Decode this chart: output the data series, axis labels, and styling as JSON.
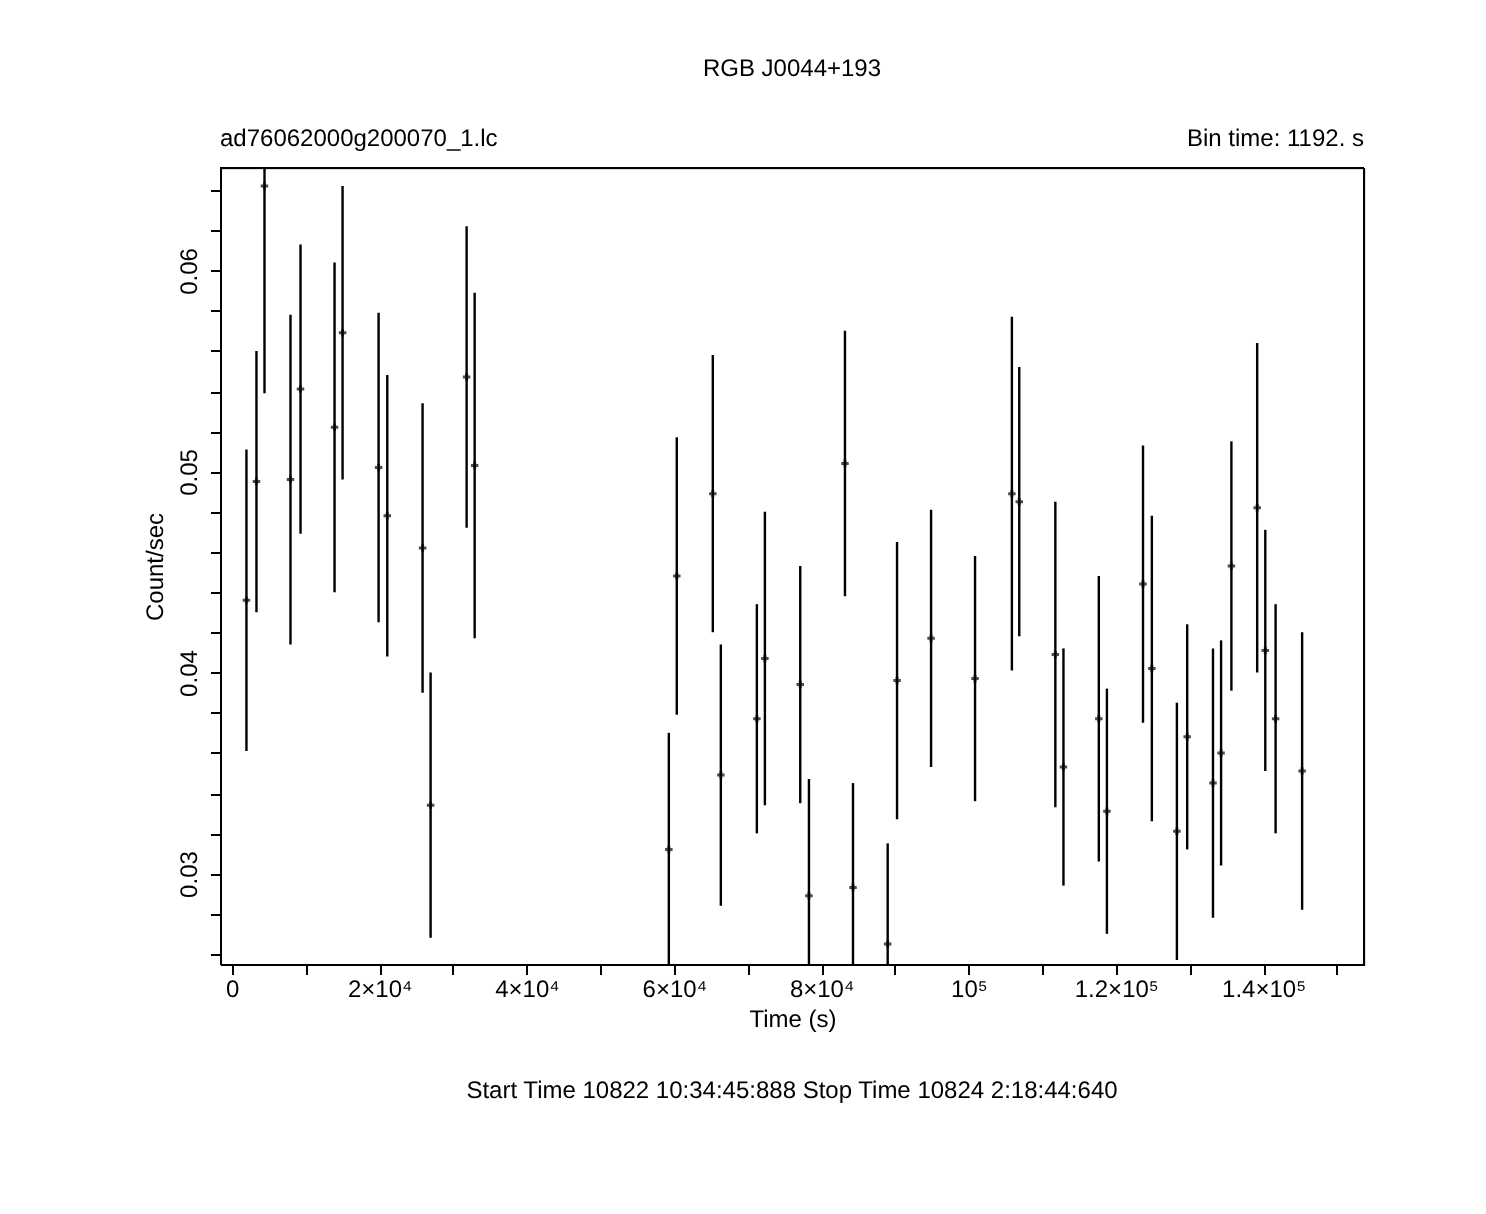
{
  "chart_data": {
    "type": "scatter",
    "title": "RGB J0044+193",
    "xlabel": "Time (s)",
    "ylabel": "Count/sec",
    "annotations": [
      "ad76062000g200070_1.lc",
      "Bin time:     1192.      s",
      "Start Time 10822  10:34:45:888     Stop Time 10824   2:18:44:640"
    ],
    "marker": "cross",
    "color": "#000000",
    "x": [
      1990,
      3350,
      4440,
      7970,
      9330,
      13950,
      15040,
      19930,
      21110,
      25900,
      26990,
      31880,
      32970,
      59330,
      60410,
      65300,
      66390,
      71280,
      72370,
      77170,
      78350,
      83240,
      84330,
      89040,
      90310,
      94930,
      100900,
      105900,
      106900,
      111800,
      112900,
      117700,
      118800,
      123700,
      124900,
      128300,
      129700,
      133200,
      134300,
      135700,
      139200,
      140300,
      141700,
      145300
    ],
    "values": [
      0.0436,
      0.0495,
      0.0642,
      0.0496,
      0.0541,
      0.0522,
      0.0569,
      0.0502,
      0.0478,
      0.0462,
      0.0334,
      0.0547,
      0.0503,
      0.0312,
      0.0448,
      0.0489,
      0.0349,
      0.0377,
      0.0407,
      0.0394,
      0.0289,
      0.0504,
      0.0293,
      0.0265,
      0.0396,
      0.0417,
      0.0397,
      0.0489,
      0.0485,
      0.0409,
      0.0353,
      0.0377,
      0.0331,
      0.0444,
      0.0402,
      0.0321,
      0.0368,
      0.0345,
      0.036,
      0.0453,
      0.0482,
      0.0411,
      0.0377,
      0.0351
    ],
    "errors": [
      0.0075,
      0.0065,
      0.0103,
      0.0082,
      0.0072,
      0.0082,
      0.0073,
      0.0077,
      0.007,
      0.0072,
      0.0066,
      0.0075,
      0.0086,
      0.0058,
      0.0069,
      0.0069,
      0.0065,
      0.0057,
      0.0073,
      0.0059,
      0.0058,
      0.0066,
      0.0052,
      0.005,
      0.0069,
      0.0064,
      0.0061,
      0.0088,
      0.0067,
      0.0076,
      0.0059,
      0.0071,
      0.0061,
      0.0069,
      0.0076,
      0.0064,
      0.0056,
      0.0067,
      0.0056,
      0.0062,
      0.0082,
      0.006,
      0.0057,
      0.0069
    ],
    "xlim": [
      -1600,
      153700
    ],
    "ylim": [
      0.0255,
      0.0651
    ],
    "xticks": [
      0,
      {
        "value": 10000,
        "label": null
      },
      {
        "value": 20000,
        "label": "2×10⁴"
      },
      {
        "value": 30000,
        "label": null
      },
      {
        "value": 40000,
        "label": "4×10⁴"
      },
      {
        "value": 50000,
        "label": null
      },
      {
        "value": 60000,
        "label": "6×10⁴"
      },
      {
        "value": 70000,
        "label": null
      },
      {
        "value": 80000,
        "label": "8×10⁴"
      },
      {
        "value": 90000,
        "label": null
      },
      {
        "value": 100000,
        "label": "10⁵"
      },
      {
        "value": 110000,
        "label": null
      },
      {
        "value": 120000,
        "label": "1.2×10⁵"
      },
      {
        "value": 130000,
        "label": null
      },
      {
        "value": 140000,
        "label": "1.4×10⁵"
      },
      {
        "value": 150000,
        "label": null
      }
    ],
    "yticks": [
      {
        "value": 0.026,
        "label": null
      },
      {
        "value": 0.028,
        "label": null
      },
      0.03,
      {
        "value": 0.032,
        "label": null
      },
      {
        "value": 0.034,
        "label": null
      },
      {
        "value": 0.036,
        "label": null
      },
      {
        "value": 0.038,
        "label": null
      },
      0.04,
      {
        "value": 0.042,
        "label": null
      },
      {
        "value": 0.044,
        "label": null
      },
      {
        "value": 0.046,
        "label": null
      },
      {
        "value": 0.048,
        "label": null
      },
      0.05,
      {
        "value": 0.052,
        "label": null
      },
      {
        "value": 0.054,
        "label": null
      },
      {
        "value": 0.056,
        "label": null
      },
      {
        "value": 0.058,
        "label": null
      },
      0.06,
      {
        "value": 0.062,
        "label": null
      },
      {
        "value": 0.064,
        "label": null
      }
    ],
    "grid": false,
    "legend": false
  }
}
